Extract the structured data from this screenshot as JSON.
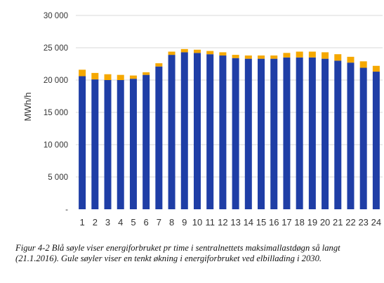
{
  "chart_data": {
    "type": "bar",
    "stacked": true,
    "ylabel": "MWh/h",
    "xlabel": "",
    "ylim": [
      0,
      30000
    ],
    "yticks": [
      0,
      5000,
      10000,
      15000,
      20000,
      25000,
      30000
    ],
    "ytick_labels": [
      "-",
      "5 000",
      "10 000",
      "15 000",
      "20 000",
      "25 000",
      "30 000"
    ],
    "grid": true,
    "legend": "none",
    "categories": [
      "1",
      "2",
      "3",
      "4",
      "5",
      "6",
      "7",
      "8",
      "9",
      "10",
      "11",
      "12",
      "13",
      "14",
      "15",
      "16",
      "17",
      "18",
      "19",
      "20",
      "21",
      "22",
      "23",
      "24"
    ],
    "series": [
      {
        "color": "#1f3ea6",
        "values": [
          20600,
          20100,
          20000,
          20000,
          20200,
          20800,
          22100,
          23900,
          24300,
          24200,
          24000,
          23800,
          23400,
          23300,
          23300,
          23300,
          23500,
          23500,
          23500,
          23300,
          23000,
          22700,
          21900,
          21300
        ]
      },
      {
        "color": "#f5a800",
        "values": [
          1000,
          1000,
          900,
          800,
          500,
          400,
          500,
          500,
          500,
          500,
          500,
          500,
          500,
          500,
          500,
          500,
          700,
          900,
          900,
          1000,
          1000,
          900,
          1000,
          900
        ]
      }
    ]
  },
  "caption": "Figur 4-2 Blå søyle viser energiforbruket pr time i sentralnettets maksimallastdøgn så langt (21.1.2016). Gule søyler viser en tenkt økning i energiforbruket ved elbillading i 2030."
}
